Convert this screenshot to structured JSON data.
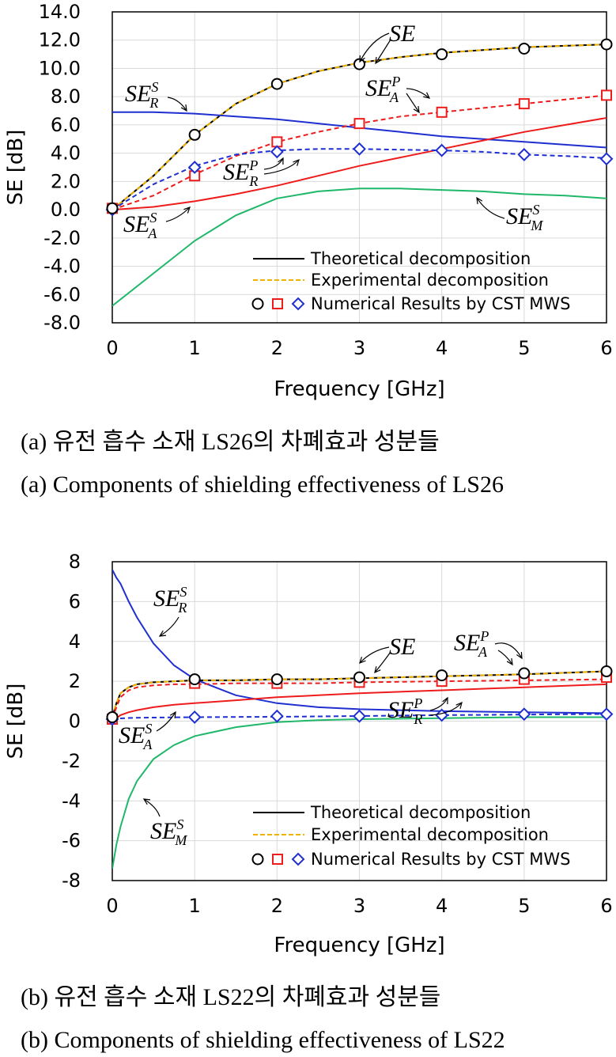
{
  "captions": {
    "a_ko": "(a) 유전 흡수 소재 LS26의 차폐효과 성분들",
    "a_en": "(a) Components of shielding effectiveness of LS26",
    "b_ko": "(b) 유전 흡수 소재 LS22의 차폐효과 성분들",
    "b_en": "(b) Components of shielding effectiveness of LS22"
  },
  "colors": {
    "SE": "#000000",
    "SE_dash": "#f0b400",
    "SE_R_S": "#1f2fd0",
    "SE_A_S": "#ee1c1c",
    "SE_M_S": "#1fb86a",
    "SE_A_P": "#ee1c1c",
    "SE_R_P": "#1f2fd0",
    "marker_circle": "#000000",
    "marker_square": "#ee1c1c",
    "marker_diamond": "#1f2fd0"
  },
  "chart_data": [
    {
      "type": "line",
      "xlabel": "Frequency [GHz]",
      "ylabel": "SE [dB]",
      "xlim": [
        0,
        6
      ],
      "ylim": [
        -8,
        14
      ],
      "x_ticks": [
        "0",
        "1",
        "2",
        "3",
        "4",
        "5",
        "6"
      ],
      "y_ticks": [
        "14.0",
        "12.0",
        "10.0",
        "8.0",
        "6.0",
        "4.0",
        "2.0",
        "0.0",
        "-2.0",
        "-4.0",
        "-6.0",
        "-8.0"
      ],
      "grid": true,
      "legend_position": "bottom-right",
      "legend": [
        "Theoretical decomposition",
        "Experimental decomposition",
        "Numerical Results by CST MWS"
      ],
      "x": [
        0,
        0.5,
        1,
        1.5,
        2,
        2.5,
        3,
        3.5,
        4,
        4.5,
        5,
        5.5,
        6
      ],
      "series": [
        {
          "name": "SE",
          "sub": "",
          "sup": "",
          "style": "solid",
          "color_key": "SE",
          "values": [
            0.0,
            2.4,
            5.3,
            7.5,
            8.9,
            9.8,
            10.4,
            10.8,
            11.1,
            11.3,
            11.5,
            11.6,
            11.7
          ]
        },
        {
          "name": "SE",
          "sub": "",
          "sup": "",
          "style": "dash",
          "color_key": "SE_dash",
          "values": [
            0.0,
            2.4,
            5.3,
            7.5,
            8.9,
            9.8,
            10.4,
            10.8,
            11.1,
            11.3,
            11.5,
            11.6,
            11.7
          ]
        },
        {
          "name": "SE",
          "sub": "R",
          "sup": "S",
          "style": "solid",
          "color_key": "SE_R_S",
          "values": [
            6.9,
            6.9,
            6.8,
            6.6,
            6.4,
            6.1,
            5.8,
            5.5,
            5.2,
            5.0,
            4.8,
            4.6,
            4.4
          ]
        },
        {
          "name": "SE",
          "sub": "A",
          "sup": "S",
          "style": "solid",
          "color_key": "SE_A_S",
          "values": [
            0.0,
            0.2,
            0.6,
            1.1,
            1.7,
            2.4,
            3.1,
            3.7,
            4.3,
            4.9,
            5.5,
            6.0,
            6.5
          ]
        },
        {
          "name": "SE",
          "sub": "M",
          "sup": "S",
          "style": "solid",
          "color_key": "SE_M_S",
          "values": [
            -6.8,
            -4.5,
            -2.2,
            -0.4,
            0.8,
            1.3,
            1.5,
            1.5,
            1.4,
            1.3,
            1.1,
            1.0,
            0.8
          ]
        },
        {
          "name": "SE",
          "sub": "A",
          "sup": "P",
          "style": "dash",
          "color_key": "SE_A_P",
          "values": [
            0.0,
            1.0,
            2.5,
            3.8,
            4.8,
            5.5,
            6.1,
            6.6,
            6.9,
            7.2,
            7.5,
            7.8,
            8.1
          ]
        },
        {
          "name": "SE",
          "sub": "R",
          "sup": "P",
          "style": "dash",
          "color_key": "SE_R_P",
          "values": [
            0.0,
            1.8,
            3.1,
            3.9,
            4.2,
            4.3,
            4.3,
            4.25,
            4.2,
            4.1,
            3.9,
            3.8,
            3.65
          ]
        }
      ],
      "markers": {
        "x": [
          0,
          1,
          2,
          3,
          4,
          5,
          6
        ],
        "circle": [
          0.1,
          5.3,
          8.9,
          10.3,
          11.0,
          11.4,
          11.7
        ],
        "square": [
          0.1,
          2.4,
          4.8,
          6.1,
          6.9,
          7.5,
          8.1
        ],
        "diamond": [
          0.0,
          3.0,
          4.1,
          4.3,
          4.2,
          3.9,
          3.6
        ]
      }
    },
    {
      "type": "line",
      "xlabel": "Frequency [GHz]",
      "ylabel": "SE [dB]",
      "xlim": [
        0,
        6
      ],
      "ylim": [
        -8,
        8
      ],
      "x_ticks": [
        "0",
        "1",
        "2",
        "3",
        "4",
        "5",
        "6"
      ],
      "y_ticks": [
        "8",
        "6",
        "4",
        "2",
        "0",
        "-2",
        "-4",
        "-6",
        "-8"
      ],
      "grid": true,
      "legend_position": "bottom-right",
      "legend": [
        "Theoretical decomposition",
        "Experimental decomposition",
        "Numerical Results by CST MWS"
      ],
      "x": [
        0,
        0.05,
        0.1,
        0.2,
        0.3,
        0.5,
        0.75,
        1,
        1.5,
        2,
        2.5,
        3,
        4,
        5,
        6
      ],
      "series": [
        {
          "name": "SE",
          "sub": "",
          "sup": "",
          "style": "solid",
          "color_key": "SE",
          "values": [
            0.2,
            0.9,
            1.4,
            1.7,
            1.85,
            1.95,
            2.0,
            2.05,
            2.05,
            2.1,
            2.1,
            2.15,
            2.25,
            2.35,
            2.5
          ]
        },
        {
          "name": "SE",
          "sub": "",
          "sup": "",
          "style": "dash",
          "color_key": "SE_dash",
          "values": [
            0.2,
            0.9,
            1.4,
            1.7,
            1.85,
            1.95,
            2.0,
            2.05,
            2.05,
            2.1,
            2.1,
            2.15,
            2.25,
            2.35,
            2.5
          ]
        },
        {
          "name": "SE",
          "sub": "R",
          "sup": "S",
          "style": "solid",
          "color_key": "SE_R_S",
          "values": [
            7.6,
            7.2,
            6.9,
            6.0,
            5.2,
            3.9,
            2.8,
            2.1,
            1.3,
            0.9,
            0.7,
            0.6,
            0.5,
            0.45,
            0.4
          ]
        },
        {
          "name": "SE",
          "sub": "A",
          "sup": "S",
          "style": "solid",
          "color_key": "SE_A_S",
          "values": [
            0.0,
            0.15,
            0.3,
            0.45,
            0.55,
            0.7,
            0.82,
            0.9,
            1.05,
            1.2,
            1.3,
            1.4,
            1.55,
            1.7,
            1.85
          ]
        },
        {
          "name": "SE",
          "sub": "M",
          "sup": "S",
          "style": "solid",
          "color_key": "SE_M_S",
          "values": [
            -7.4,
            -6.2,
            -5.3,
            -3.9,
            -3.0,
            -1.9,
            -1.2,
            -0.75,
            -0.3,
            -0.05,
            0.05,
            0.1,
            0.15,
            0.2,
            0.2
          ]
        },
        {
          "name": "SE",
          "sub": "A",
          "sup": "P",
          "style": "dash",
          "color_key": "SE_A_P",
          "values": [
            0.1,
            0.7,
            1.2,
            1.55,
            1.7,
            1.8,
            1.85,
            1.85,
            1.9,
            1.9,
            1.9,
            1.95,
            2.0,
            2.05,
            2.1
          ]
        },
        {
          "name": "SE",
          "sub": "R",
          "sup": "P",
          "style": "dash",
          "color_key": "SE_R_P",
          "values": [
            0.1,
            0.12,
            0.14,
            0.16,
            0.17,
            0.18,
            0.19,
            0.2,
            0.21,
            0.22,
            0.24,
            0.26,
            0.3,
            0.33,
            0.36
          ]
        }
      ],
      "markers": {
        "x": [
          0,
          1,
          2,
          3,
          4,
          5,
          6
        ],
        "circle": [
          0.2,
          2.1,
          2.1,
          2.2,
          2.3,
          2.4,
          2.5
        ],
        "square": [
          0.1,
          1.9,
          1.9,
          1.95,
          2.0,
          2.1,
          2.2
        ],
        "diamond": [
          0.1,
          0.2,
          0.25,
          0.25,
          0.3,
          0.35,
          0.35
        ]
      }
    }
  ]
}
